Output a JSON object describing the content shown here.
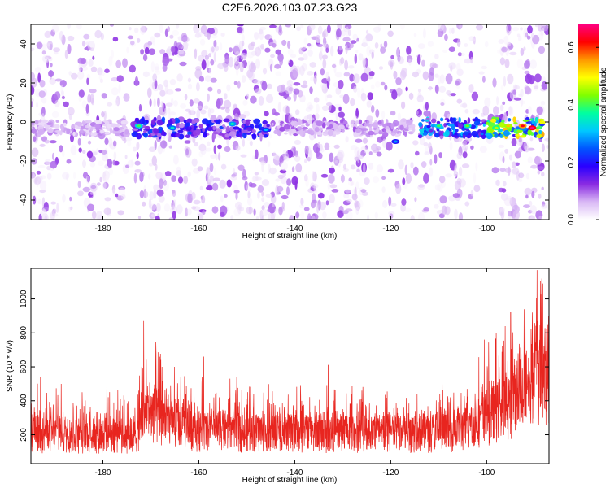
{
  "title": "C2E6.2026.103.07.23.G23",
  "chart_data": [
    {
      "type": "heatmap",
      "name": "spectrogram",
      "xlabel": "Height of straight line (km)",
      "ylabel": "Frequency (Hz)",
      "xlim": [
        -195,
        -87
      ],
      "ylim": [
        -50,
        50
      ],
      "xticks": [
        -180,
        -160,
        -140,
        -120,
        -100
      ],
      "yticks": [
        -40,
        -20,
        0,
        20,
        40
      ],
      "colorbar": {
        "label": "Normalized spectral amplitude",
        "range": [
          0.0,
          0.68
        ],
        "ticks": [
          0.0,
          0.2,
          0.4,
          0.6
        ],
        "colors": [
          "#ffffff",
          "#d9b8f5",
          "#8a2be2",
          "#2a00ff",
          "#0055ff",
          "#00c8ff",
          "#00ffa0",
          "#7fff00",
          "#ffff00",
          "#ff9900",
          "#ff0000",
          "#ff0080"
        ]
      },
      "signal_band": {
        "center_frequency_hz": -3,
        "segments": [
          {
            "from_km": -195,
            "to_km": -175,
            "amplitude": 0.08
          },
          {
            "from_km": -174,
            "to_km": -145,
            "amplitude": 0.22
          },
          {
            "from_km": -145,
            "to_km": -115,
            "amplitude": 0.1
          },
          {
            "from_km": -114,
            "to_km": -100,
            "amplitude": 0.3
          },
          {
            "from_km": -100,
            "to_km": -88,
            "amplitude": 0.5
          }
        ],
        "hotspots": [
          {
            "km": -172.5,
            "hz": -2,
            "amplitude": 0.32
          },
          {
            "km": -165.5,
            "hz": -3,
            "amplitude": 0.26
          },
          {
            "km": -153,
            "hz": -1,
            "amplitude": 0.28
          },
          {
            "km": -146,
            "hz": -4,
            "amplitude": 0.22
          },
          {
            "km": -119,
            "hz": -10,
            "amplitude": 0.2
          },
          {
            "km": -110,
            "hz": -2,
            "amplitude": 0.32
          },
          {
            "km": -104,
            "hz": -2,
            "amplitude": 0.34
          },
          {
            "km": -98,
            "hz": -3,
            "amplitude": 0.38
          },
          {
            "km": -95.5,
            "hz": -2,
            "amplitude": 0.45
          },
          {
            "km": -92.5,
            "hz": -2,
            "amplitude": 0.55
          },
          {
            "km": -90.5,
            "hz": -3,
            "amplitude": 0.62
          }
        ]
      }
    },
    {
      "type": "line",
      "name": "snr",
      "xlabel": "Height of straight line (km)",
      "ylabel": "SNR (10 * v/v)",
      "xlim": [
        -195,
        -87
      ],
      "ylim": [
        30,
        1180
      ],
      "xticks": [
        -180,
        -160,
        -140,
        -120,
        -100
      ],
      "yticks": [
        200,
        400,
        600,
        800,
        1000
      ],
      "color": "#e8251f",
      "series": {
        "name": "SNR",
        "baseline": [
          {
            "km": -195,
            "snr": 200
          },
          {
            "km": -173,
            "snr": 190
          },
          {
            "km": -171,
            "snr": 330
          },
          {
            "km": -166,
            "snr": 260
          },
          {
            "km": -160,
            "snr": 215
          },
          {
            "km": -140,
            "snr": 205
          },
          {
            "km": -120,
            "snr": 200
          },
          {
            "km": -105,
            "snr": 215
          },
          {
            "km": -101,
            "snr": 280
          },
          {
            "km": -96,
            "snr": 360
          },
          {
            "km": -92,
            "snr": 450
          },
          {
            "km": -89,
            "snr": 560
          },
          {
            "km": -87,
            "snr": 520
          }
        ],
        "peaks": [
          {
            "km": -193,
            "snr": 540
          },
          {
            "km": -171.5,
            "snr": 870
          },
          {
            "km": -169,
            "snr": 620
          },
          {
            "km": -159,
            "snr": 660
          },
          {
            "km": -153.5,
            "snr": 530
          },
          {
            "km": -133,
            "snr": 610
          },
          {
            "km": -126,
            "snr": 460
          },
          {
            "km": -112,
            "snr": 470
          },
          {
            "km": -100.5,
            "snr": 760
          },
          {
            "km": -98,
            "snr": 800
          },
          {
            "km": -95,
            "snr": 920
          },
          {
            "km": -92,
            "snr": 1000
          },
          {
            "km": -89.5,
            "snr": 1170
          },
          {
            "km": -88.5,
            "snr": 1120
          }
        ]
      }
    }
  ]
}
